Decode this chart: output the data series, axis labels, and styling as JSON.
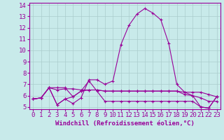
{
  "xlabel": "Windchill (Refroidissement éolien,°C)",
  "bg_color": "#c8eaea",
  "grid_color": "#aacccc",
  "line_color": "#990099",
  "xlim_min": -0.5,
  "xlim_max": 23.5,
  "ylim_min": 4.8,
  "ylim_max": 14.2,
  "xticks": [
    0,
    1,
    2,
    3,
    4,
    5,
    6,
    7,
    8,
    9,
    10,
    11,
    12,
    13,
    14,
    15,
    16,
    17,
    18,
    19,
    20,
    21,
    22,
    23
  ],
  "yticks": [
    5,
    6,
    7,
    8,
    9,
    10,
    11,
    12,
    13,
    14
  ],
  "series": [
    [
      5.7,
      5.8,
      6.7,
      5.2,
      5.7,
      5.3,
      5.8,
      7.4,
      7.4,
      7.0,
      7.3,
      10.5,
      12.2,
      13.2,
      13.7,
      13.3,
      12.7,
      10.6,
      7.0,
      6.3,
      6.0,
      5.0,
      4.9,
      5.9
    ],
    [
      5.7,
      5.8,
      6.7,
      6.5,
      6.6,
      6.6,
      6.5,
      6.5,
      6.5,
      6.4,
      6.4,
      6.4,
      6.4,
      6.4,
      6.4,
      6.4,
      6.4,
      6.4,
      6.4,
      6.3,
      6.3,
      6.3,
      6.1,
      5.9
    ],
    [
      5.7,
      5.8,
      6.7,
      6.7,
      6.7,
      5.9,
      6.4,
      6.5,
      6.5,
      6.4,
      6.4,
      6.4,
      6.4,
      6.4,
      6.4,
      6.4,
      6.4,
      6.4,
      6.4,
      6.1,
      6.0,
      5.8,
      5.5,
      5.5
    ],
    [
      5.7,
      5.8,
      6.7,
      5.2,
      5.7,
      5.9,
      6.4,
      7.3,
      6.4,
      5.5,
      5.5,
      5.5,
      5.5,
      5.5,
      5.5,
      5.5,
      5.5,
      5.5,
      5.5,
      5.5,
      5.5,
      5.0,
      4.9,
      5.9
    ]
  ],
  "tick_fontsize": 6.5,
  "label_fontsize": 6.5
}
